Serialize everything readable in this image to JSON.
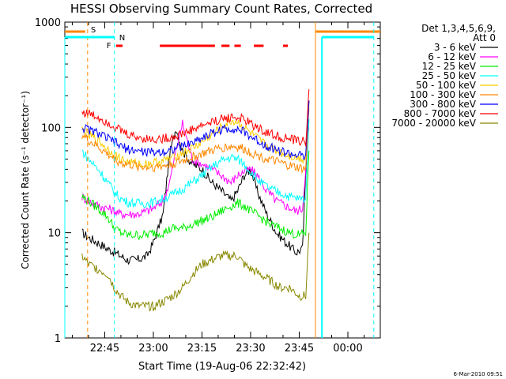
{
  "chart_data": {
    "type": "line",
    "title": "HESSI Observing Summary Count Rates, Corrected",
    "xlabel": "Start Time (19-Aug-06 22:32:42)",
    "ylabel": "Corrected Count Rate (s⁻¹ detector⁻¹)",
    "y_scale": "log",
    "ylim": [
      1,
      1000
    ],
    "xlim": [
      "22:32:42",
      "00:10:00"
    ],
    "x_ticks": [
      "22:45",
      "23:00",
      "23:15",
      "23:30",
      "23:45",
      "00:00"
    ],
    "y_ticks": [
      "1",
      "10",
      "100",
      "1000"
    ],
    "legend": {
      "position": "right",
      "header": [
        "Det 1,3,4,5,6,9,",
        "Att 0"
      ],
      "entries": [
        {
          "label": "3 - 6 keV",
          "color": "#000000"
        },
        {
          "label": "6 - 12 keV",
          "color": "#ff00ff"
        },
        {
          "label": "12 - 25 keV",
          "color": "#00ee00"
        },
        {
          "label": "25 - 50 keV",
          "color": "#00ffff"
        },
        {
          "label": "50 - 100 keV",
          "color": "#ffcc00"
        },
        {
          "label": "100 - 300 keV",
          "color": "#ff8800"
        },
        {
          "label": "300 - 800 keV",
          "color": "#0000ff"
        },
        {
          "label": "800 - 7000 keV",
          "color": "#ff0000"
        },
        {
          "label": "7000 - 20000 keV",
          "color": "#888800"
        }
      ]
    },
    "flags": {
      "S": {
        "label": "S",
        "color": "#ff8800",
        "times": [
          "22:39:00",
          "23:50:00"
        ]
      },
      "N": {
        "label": "N",
        "color": "#00ffff",
        "times": [
          "22:48:00",
          "23:52:00",
          "00:08:00"
        ]
      },
      "F": {
        "label": "F",
        "color": "#ff0000",
        "segments": [
          [
            "22:48:30",
            "22:50:30"
          ],
          [
            "23:02:00",
            "23:19:00"
          ],
          [
            "23:21:00",
            "23:23:30"
          ],
          [
            "23:25:00",
            "23:27:00"
          ],
          [
            "23:31:00",
            "23:34:00"
          ],
          [
            "23:40:00",
            "23:41:30"
          ]
        ]
      }
    },
    "series": [
      {
        "name": "3 - 6 keV",
        "color": "#000000",
        "x": [
          "22:38",
          "22:40",
          "22:43",
          "22:46",
          "22:48",
          "22:50",
          "22:52",
          "22:55",
          "22:58",
          "23:00",
          "23:03",
          "23:05",
          "23:07",
          "23:09",
          "23:12",
          "23:15",
          "23:18",
          "23:21",
          "23:24",
          "23:26",
          "23:28",
          "23:30",
          "23:32",
          "23:35",
          "23:38",
          "23:41",
          "23:44",
          "23:46",
          "23:48"
        ],
        "values": [
          10,
          9,
          8,
          7,
          6.5,
          6,
          5.5,
          5.5,
          6,
          8,
          15,
          55,
          100,
          60,
          45,
          40,
          30,
          25,
          20,
          25,
          35,
          40,
          25,
          15,
          10,
          8,
          6.5,
          7,
          180
        ]
      },
      {
        "name": "6 - 12 keV",
        "color": "#ff00ff",
        "x": [
          "22:38",
          "22:40",
          "22:43",
          "22:46",
          "22:48",
          "22:50",
          "22:52",
          "22:55",
          "22:58",
          "23:00",
          "23:03",
          "23:05",
          "23:07",
          "23:09",
          "23:12",
          "23:15",
          "23:18",
          "23:21",
          "23:24",
          "23:26",
          "23:28",
          "23:30",
          "23:32",
          "23:35",
          "23:38",
          "23:41",
          "23:44",
          "23:46",
          "23:48"
        ],
        "values": [
          22,
          20,
          18,
          17,
          16,
          15,
          15,
          15,
          16,
          17,
          20,
          30,
          60,
          110,
          50,
          45,
          40,
          35,
          30,
          35,
          38,
          40,
          35,
          25,
          20,
          18,
          16,
          17,
          100
        ]
      },
      {
        "name": "12 - 25 keV",
        "color": "#00ee00",
        "x": [
          "22:38",
          "22:40",
          "22:43",
          "22:46",
          "22:48",
          "22:50",
          "22:52",
          "22:55",
          "22:58",
          "23:00",
          "23:03",
          "23:06",
          "23:09",
          "23:12",
          "23:15",
          "23:18",
          "23:21",
          "23:24",
          "23:26",
          "23:28",
          "23:30",
          "23:33",
          "23:36",
          "23:39",
          "23:42",
          "23:45",
          "23:47",
          "23:48"
        ],
        "values": [
          22,
          20,
          17,
          14,
          11,
          10,
          9.5,
          9.5,
          9.5,
          10,
          10,
          11,
          11,
          12,
          13,
          14,
          16,
          18,
          19,
          18,
          16,
          14,
          12,
          11,
          10,
          9.5,
          10,
          60
        ]
      },
      {
        "name": "25 - 50 keV",
        "color": "#00ffff",
        "x": [
          "22:38",
          "22:40",
          "22:43",
          "22:46",
          "22:48",
          "22:50",
          "22:52",
          "22:55",
          "22:58",
          "23:00",
          "23:03",
          "23:06",
          "23:09",
          "23:12",
          "23:15",
          "23:18",
          "23:21",
          "23:24",
          "23:26",
          "23:28",
          "23:30",
          "23:33",
          "23:36",
          "23:39",
          "23:42",
          "23:45",
          "23:47",
          "23:48"
        ],
        "values": [
          60,
          50,
          40,
          30,
          24,
          21,
          19.5,
          19,
          19,
          19.5,
          21,
          23,
          26,
          30,
          35,
          42,
          48,
          52,
          50,
          45,
          38,
          30,
          26,
          24,
          22,
          21,
          21,
          120
        ]
      },
      {
        "name": "50 - 100 keV",
        "color": "#ffcc00",
        "x": [
          "22:38",
          "22:40",
          "22:43",
          "22:46",
          "22:48",
          "22:50",
          "22:52",
          "22:55",
          "22:58",
          "23:00",
          "23:03",
          "23:06",
          "23:09",
          "23:12",
          "23:15",
          "23:18",
          "23:21",
          "23:24",
          "23:26",
          "23:28",
          "23:30",
          "23:33",
          "23:36",
          "23:39",
          "23:42",
          "23:45",
          "23:47",
          "23:48"
        ],
        "values": [
          95,
          85,
          75,
          62,
          55,
          50,
          47,
          45,
          45,
          46,
          48,
          52,
          57,
          63,
          72,
          85,
          100,
          115,
          112,
          100,
          88,
          74,
          64,
          58,
          54,
          51,
          50,
          160
        ]
      },
      {
        "name": "100 - 300 keV",
        "color": "#ff8800",
        "x": [
          "22:38",
          "22:40",
          "22:43",
          "22:46",
          "22:48",
          "22:50",
          "22:52",
          "22:55",
          "22:58",
          "23:00",
          "23:03",
          "23:06",
          "23:09",
          "23:12",
          "23:15",
          "23:18",
          "23:21",
          "23:24",
          "23:26",
          "23:28",
          "23:30",
          "23:33",
          "23:36",
          "23:39",
          "23:42",
          "23:45",
          "23:47",
          "23:48"
        ],
        "values": [
          85,
          75,
          65,
          55,
          50,
          46,
          44,
          43,
          42,
          42,
          43,
          45,
          48,
          52,
          56,
          60,
          64,
          66,
          65,
          62,
          58,
          53,
          49,
          46,
          43,
          41,
          40,
          150
        ]
      },
      {
        "name": "300 - 800 keV",
        "color": "#0000ff",
        "x": [
          "22:38",
          "22:40",
          "22:43",
          "22:46",
          "22:48",
          "22:50",
          "22:52",
          "22:55",
          "22:58",
          "23:00",
          "23:03",
          "23:06",
          "23:09",
          "23:12",
          "23:15",
          "23:18",
          "23:21",
          "23:24",
          "23:26",
          "23:28",
          "23:30",
          "23:33",
          "23:36",
          "23:39",
          "23:42",
          "23:45",
          "23:47",
          "23:48"
        ],
        "values": [
          100,
          95,
          88,
          78,
          72,
          66,
          62,
          60,
          58,
          58,
          59,
          62,
          66,
          72,
          80,
          88,
          95,
          98,
          96,
          90,
          82,
          72,
          65,
          60,
          56,
          54,
          52,
          180
        ]
      },
      {
        "name": "800 - 7000 keV",
        "color": "#ff0000",
        "x": [
          "22:38",
          "22:40",
          "22:43",
          "22:46",
          "22:48",
          "22:50",
          "22:52",
          "22:55",
          "22:58",
          "23:00",
          "23:03",
          "23:06",
          "23:09",
          "23:12",
          "23:15",
          "23:18",
          "23:21",
          "23:24",
          "23:26",
          "23:28",
          "23:30",
          "23:33",
          "23:36",
          "23:39",
          "23:42",
          "23:45",
          "23:47",
          "23:48"
        ],
        "values": [
          140,
          135,
          125,
          112,
          102,
          93,
          86,
          81,
          78,
          77,
          78,
          81,
          87,
          95,
          104,
          112,
          120,
          125,
          124,
          118,
          108,
          96,
          87,
          81,
          77,
          74,
          73,
          230
        ]
      },
      {
        "name": "7000 - 20000 keV",
        "color": "#888800",
        "x": [
          "22:38",
          "22:40",
          "22:43",
          "22:46",
          "22:48",
          "22:50",
          "22:52",
          "22:55",
          "22:58",
          "23:00",
          "23:03",
          "23:06",
          "23:09",
          "23:12",
          "23:15",
          "23:18",
          "23:21",
          "23:24",
          "23:26",
          "23:28",
          "23:30",
          "23:33",
          "23:36",
          "23:39",
          "23:42",
          "23:45",
          "23:47",
          "23:48"
        ],
        "values": [
          6,
          5,
          4.5,
          4,
          3,
          2.5,
          2.2,
          2,
          2,
          2,
          2.2,
          2.5,
          3,
          4,
          5,
          5.5,
          6,
          6,
          6,
          5,
          4.5,
          4,
          3.5,
          3,
          3,
          2.5,
          2.5,
          10
        ]
      }
    ]
  },
  "footer": {
    "date_stamp": "6-Mar-2010 09:51"
  }
}
